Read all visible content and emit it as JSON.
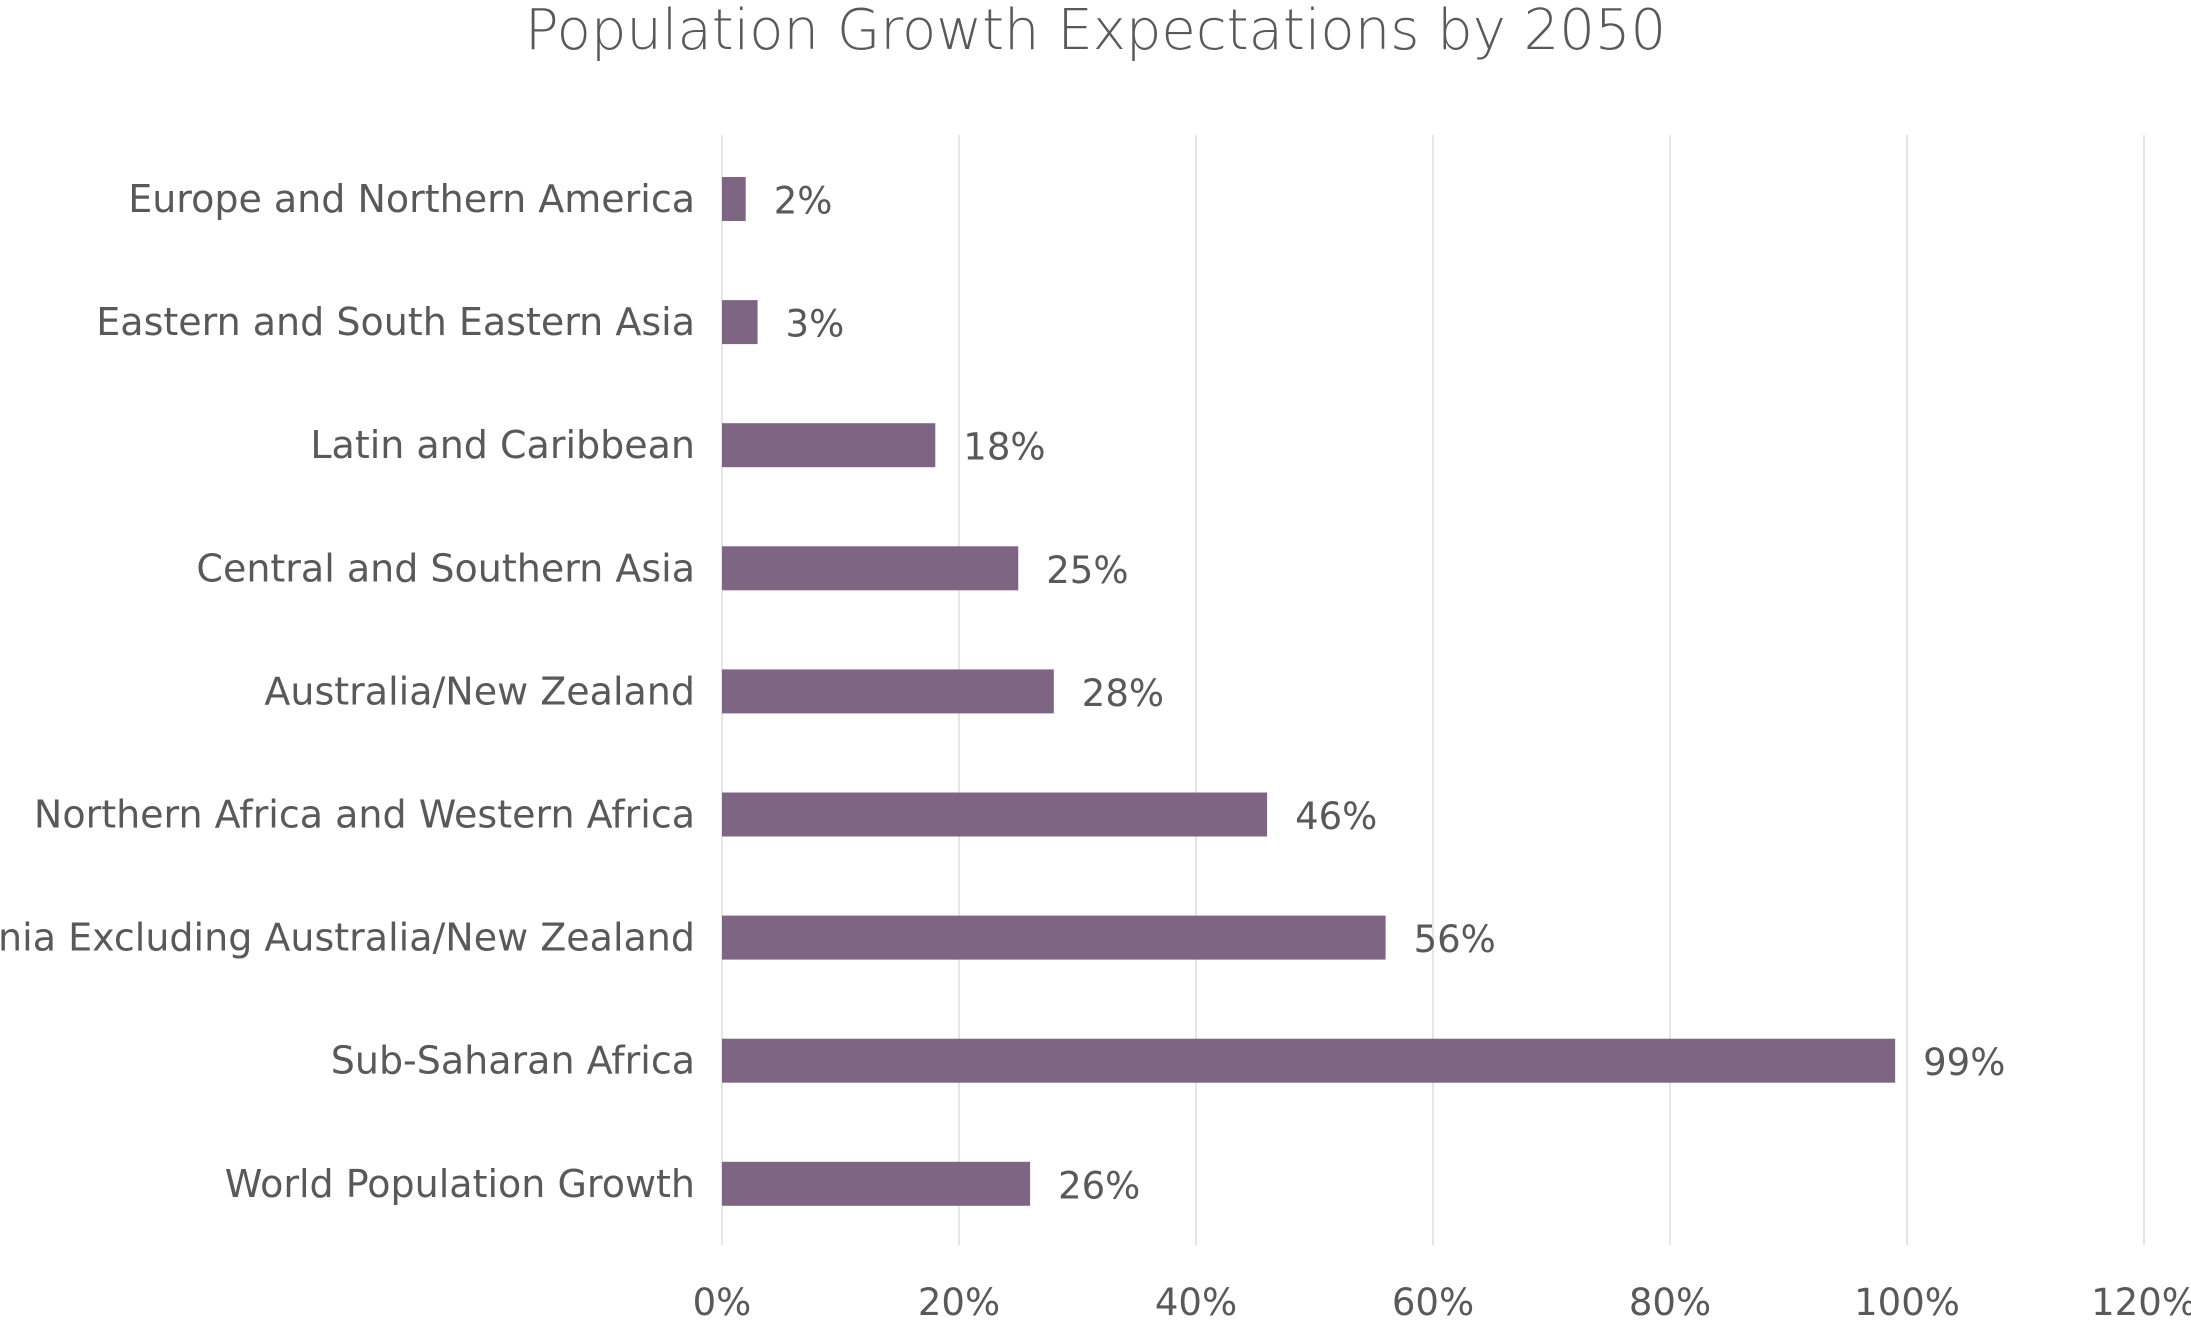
{
  "chart_data": {
    "type": "bar",
    "orientation": "horizontal",
    "title": "Population Growth Expectations by 2050",
    "categories": [
      "Europe and Northern America",
      "Eastern and South Eastern Asia",
      "Latin and Caribbean",
      "Central and Southern Asia",
      "Australia/New Zealand",
      "Northern Africa and Western Africa",
      "Oceania Excluding Australia/New Zealand",
      "Sub-Saharan Africa",
      "World Population Growth"
    ],
    "values": [
      2,
      3,
      18,
      25,
      28,
      46,
      56,
      99,
      26
    ],
    "data_labels": [
      "2%",
      "3%",
      "18%",
      "25%",
      "28%",
      "46%",
      "56%",
      "99%",
      "26%"
    ],
    "xlim": [
      0,
      120
    ],
    "x_ticks": [
      0,
      20,
      40,
      60,
      80,
      100,
      120
    ],
    "x_tick_labels": [
      "0%",
      "20%",
      "40%",
      "60%",
      "80%",
      "100%",
      "120%"
    ],
    "xlabel": "",
    "ylabel": "",
    "grid": "vertical",
    "legend": "none",
    "bar_color": "#7f6584"
  }
}
